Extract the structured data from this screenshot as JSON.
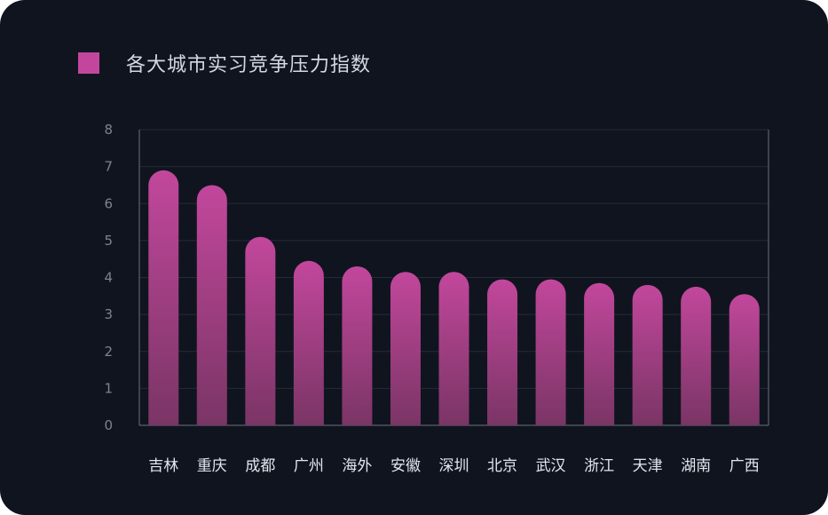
{
  "chart_data": {
    "type": "bar",
    "title": "",
    "xlabel": "",
    "ylabel": "",
    "legend": {
      "label": "各大城市实习竞争压力指数",
      "placement": "top-left",
      "color": "#c2479c"
    },
    "categories": [
      "吉林",
      "重庆",
      "成都",
      "广州",
      "海外",
      "安徽",
      "深圳",
      "北京",
      "武汉",
      "浙江",
      "天津",
      "湖南",
      "广西"
    ],
    "series": [
      {
        "name": "各大城市实习竞争压力指数",
        "values": [
          6.9,
          6.5,
          5.1,
          4.45,
          4.3,
          4.15,
          4.15,
          3.95,
          3.95,
          3.85,
          3.8,
          3.75,
          3.55
        ]
      }
    ],
    "ylim": [
      0,
      8
    ],
    "yticks": [
      "0",
      "1",
      "2",
      "3",
      "4",
      "5",
      "6",
      "7",
      "8"
    ],
    "grid": true,
    "colors": {
      "background": "#10141f",
      "bar_top": "#c2479c",
      "bar_bottom": "#7a3565",
      "grid": "#242a38",
      "axis": "#6b7180"
    }
  }
}
